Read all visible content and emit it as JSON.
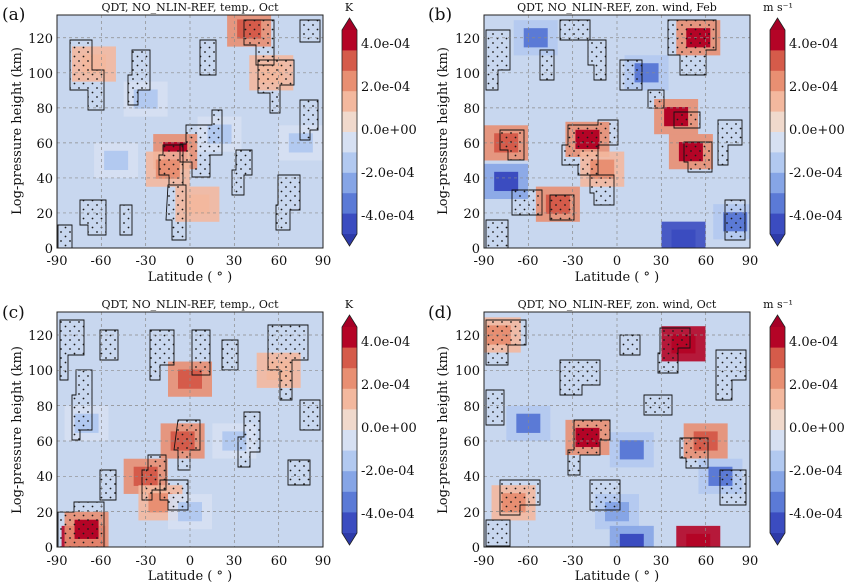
{
  "figure": {
    "panels": [
      {
        "letter": "(a)",
        "title": "QDT, NO_NLIN-REF, temp., Oct",
        "xlabel": "Latitude ( ° )",
        "ylabel": "Log-pressure  height (km)",
        "x_ticks": [
          "-90",
          "-60",
          "-30",
          "0",
          "30",
          "60",
          "90"
        ],
        "y_ticks": [
          "0",
          "20",
          "40",
          "60",
          "80",
          "100",
          "120"
        ],
        "colorbar": {
          "unit": "K",
          "tick_labels": [
            "4.0e-04",
            "2.0e-04",
            "0.0e+00",
            "-2.0e-04",
            "-4.0e-04"
          ]
        }
      },
      {
        "letter": "(b)",
        "title": "QDT, NO_NLIN-REF, zon. wind, Feb",
        "xlabel": "Latitude ( ° )",
        "ylabel": "Log-pressure  height (km)",
        "x_ticks": [
          "-90",
          "-60",
          "-30",
          "0",
          "30",
          "60",
          "90"
        ],
        "y_ticks": [
          "0",
          "20",
          "40",
          "60",
          "80",
          "100",
          "120"
        ],
        "colorbar": {
          "unit": "m s⁻¹",
          "tick_labels": [
            "4.0e-04",
            "2.0e-04",
            "0.0e+00",
            "-2.0e-04",
            "-4.0e-04"
          ]
        }
      },
      {
        "letter": "(c)",
        "title": "QDT, NO_NLIN-REF, temp., Oct",
        "xlabel": "Latitude ( ° )",
        "ylabel": "Log-pressure  height (km)",
        "x_ticks": [
          "-90",
          "-60",
          "-30",
          "0",
          "30",
          "60",
          "90"
        ],
        "y_ticks": [
          "0",
          "20",
          "40",
          "60",
          "80",
          "100",
          "120"
        ],
        "colorbar": {
          "unit": "K",
          "tick_labels": [
            "4.0e-04",
            "2.0e-04",
            "0.0e+00",
            "-2.0e-04",
            "-4.0e-04"
          ]
        }
      },
      {
        "letter": "(d)",
        "title": "QDT, NO_NLIN-REF, zon. wind, Oct",
        "xlabel": "Latitude ( ° )",
        "ylabel": "Log-pressure  height (km)",
        "x_ticks": [
          "-90",
          "-60",
          "-30",
          "0",
          "30",
          "60",
          "90"
        ],
        "y_ticks": [
          "0",
          "20",
          "40",
          "60",
          "80",
          "100",
          "120"
        ],
        "colorbar": {
          "unit": "m s⁻¹",
          "tick_labels": [
            "4.0e-04",
            "2.0e-04",
            "0.0e+00",
            "-2.0e-04",
            "-4.0e-04"
          ]
        }
      }
    ]
  },
  "chart_data": [
    {
      "type": "heatmap",
      "title": "QDT, NO_NLIN-REF, temp., Oct",
      "xlabel": "Latitude ( ° )",
      "ylabel": "Log-pressure  height (km)",
      "xlim": [
        -90,
        90
      ],
      "ylim": [
        0,
        133
      ],
      "x_ticks": [
        -90,
        -60,
        -30,
        0,
        30,
        60,
        90
      ],
      "y_ticks": [
        0,
        20,
        40,
        60,
        80,
        100,
        120
      ],
      "grid": true,
      "colorbar": {
        "unit": "K",
        "range": [
          -0.0005,
          0.0005
        ],
        "ticks": [
          0.0004,
          0.0002,
          0,
          -0.0002,
          -0.0004
        ]
      },
      "features": [
        {
          "lat": -10,
          "z": 55,
          "value": 0.00025
        },
        {
          "lat": -15,
          "z": 45,
          "value": 0.00015
        },
        {
          "lat": 5,
          "z": 25,
          "value": 0.0001
        },
        {
          "lat": 40,
          "z": 125,
          "value": 0.0002
        },
        {
          "lat": -65,
          "z": 105,
          "value": 0.0001
        },
        {
          "lat": 55,
          "z": 100,
          "value": 0.0001
        },
        {
          "lat": -50,
          "z": 50,
          "value": -0.0001
        },
        {
          "lat": 20,
          "z": 65,
          "value": -0.0001
        },
        {
          "lat": -30,
          "z": 85,
          "value": -8e-05
        },
        {
          "lat": 75,
          "z": 60,
          "value": -8e-05
        }
      ]
    },
    {
      "type": "heatmap",
      "title": "QDT, NO_NLIN-REF, zon. wind, Feb",
      "xlabel": "Latitude ( ° )",
      "ylabel": "Log-pressure  height (km)",
      "xlim": [
        -90,
        90
      ],
      "ylim": [
        0,
        133
      ],
      "x_ticks": [
        -90,
        -60,
        -30,
        0,
        30,
        60,
        90
      ],
      "y_ticks": [
        0,
        20,
        40,
        60,
        80,
        100,
        120
      ],
      "grid": true,
      "colorbar": {
        "unit": "m s⁻¹",
        "range": [
          -0.0005,
          0.0005
        ],
        "ticks": [
          0.0004,
          0.0002,
          0,
          -0.0002,
          -0.0004
        ]
      },
      "features": [
        {
          "lat": -20,
          "z": 62,
          "value": 0.0003
        },
        {
          "lat": -10,
          "z": 45,
          "value": 0.00015
        },
        {
          "lat": 50,
          "z": 55,
          "value": 0.00025
        },
        {
          "lat": 40,
          "z": 75,
          "value": 0.00025
        },
        {
          "lat": 55,
          "z": 120,
          "value": 0.0003
        },
        {
          "lat": -40,
          "z": 25,
          "value": 0.0002
        },
        {
          "lat": -75,
          "z": 60,
          "value": 0.0002
        },
        {
          "lat": -75,
          "z": 38,
          "value": -0.0003
        },
        {
          "lat": 45,
          "z": 5,
          "value": -0.0004
        },
        {
          "lat": 80,
          "z": 15,
          "value": -0.0002
        },
        {
          "lat": 20,
          "z": 100,
          "value": -0.0002
        },
        {
          "lat": -55,
          "z": 120,
          "value": -0.0002
        }
      ]
    },
    {
      "type": "heatmap",
      "title": "QDT, NO_NLIN-REF, temp., Oct",
      "xlabel": "Latitude ( ° )",
      "ylabel": "Log-pressure  height (km)",
      "xlim": [
        -90,
        90
      ],
      "ylim": [
        0,
        133
      ],
      "x_ticks": [
        -90,
        -60,
        -30,
        0,
        30,
        60,
        90
      ],
      "y_ticks": [
        0,
        20,
        40,
        60,
        80,
        100,
        120
      ],
      "grid": true,
      "colorbar": {
        "unit": "K",
        "range": [
          -0.0005,
          0.0005
        ],
        "ticks": [
          0.0004,
          0.0002,
          0,
          -0.0002,
          -0.0004
        ]
      },
      "features": [
        {
          "lat": -72,
          "z": 2,
          "value": 0.0005
        },
        {
          "lat": -70,
          "z": 10,
          "value": 0.0003
        },
        {
          "lat": -5,
          "z": 60,
          "value": 0.0002
        },
        {
          "lat": -30,
          "z": 40,
          "value": 0.0002
        },
        {
          "lat": -20,
          "z": 25,
          "value": 0.00015
        },
        {
          "lat": 0,
          "z": 95,
          "value": 0.0002
        },
        {
          "lat": 60,
          "z": 100,
          "value": 0.0001
        },
        {
          "lat": 30,
          "z": 60,
          "value": -0.0001
        },
        {
          "lat": -70,
          "z": 70,
          "value": -0.0001
        },
        {
          "lat": 0,
          "z": 20,
          "value": -0.0001
        }
      ]
    },
    {
      "type": "heatmap",
      "title": "QDT, NO_NLIN-REF, zon. wind, Oct",
      "xlabel": "Latitude ( ° )",
      "ylabel": "Log-pressure  height (km)",
      "xlim": [
        -90,
        90
      ],
      "ylim": [
        0,
        133
      ],
      "x_ticks": [
        -90,
        -60,
        -30,
        0,
        30,
        60,
        90
      ],
      "y_ticks": [
        0,
        20,
        40,
        60,
        80,
        100,
        120
      ],
      "grid": true,
      "colorbar": {
        "unit": "m s⁻¹",
        "range": [
          -0.0005,
          0.0005
        ],
        "ticks": [
          0.0004,
          0.0002,
          0,
          -0.0002,
          -0.0004
        ]
      },
      "features": [
        {
          "lat": -20,
          "z": 62,
          "value": 0.0003
        },
        {
          "lat": 45,
          "z": 115,
          "value": 0.0004
        },
        {
          "lat": 55,
          "z": 2,
          "value": 0.0005
        },
        {
          "lat": 60,
          "z": 60,
          "value": 0.0002
        },
        {
          "lat": -70,
          "z": 25,
          "value": 0.00015
        },
        {
          "lat": -80,
          "z": 120,
          "value": 0.00015
        },
        {
          "lat": 0,
          "z": 20,
          "value": -0.00015
        },
        {
          "lat": -60,
          "z": 70,
          "value": -0.0002
        },
        {
          "lat": 10,
          "z": 55,
          "value": -0.0002
        },
        {
          "lat": 70,
          "z": 40,
          "value": -0.0002
        },
        {
          "lat": 10,
          "z": 2,
          "value": -0.0003
        }
      ]
    }
  ]
}
